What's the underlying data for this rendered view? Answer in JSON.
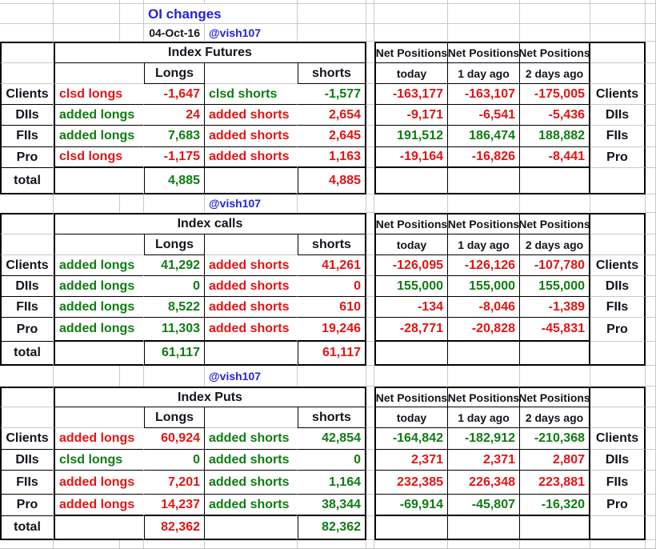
{
  "meta": {
    "title": "OI changes",
    "date": "04-Oct-16",
    "handle": "@vish107"
  },
  "colors": {
    "red": "#e41414",
    "green": "#0f7c12",
    "blue": "#2323dd",
    "gridline": "#c9c9c9"
  },
  "net": {
    "header": "Net Positions",
    "today": "today",
    "day1": "1 day ago",
    "day2": "2 days ago"
  },
  "cols": {
    "longs": "Longs",
    "shorts": "shorts"
  },
  "sections": [
    {
      "title": "Index Futures",
      "rows": [
        {
          "n": "Clients",
          "la": "clsd longs",
          "lac": "red",
          "lv": "-1,647",
          "lvc": "red",
          "sa": "clsd shorts",
          "sac": "green",
          "sv": "-1,577",
          "svc": "green",
          "nt": "-163,177",
          "n1": "-163,107",
          "n2": "-175,005",
          "nc": "red"
        },
        {
          "n": "DIIs",
          "la": "added longs",
          "lac": "green",
          "lv": "24",
          "lvc": "red",
          "sa": "added shorts",
          "sac": "red",
          "sv": "2,654",
          "svc": "red",
          "nt": "-9,171",
          "n1": "-6,541",
          "n2": "-5,436",
          "nc": "red"
        },
        {
          "n": "FIIs",
          "la": "added longs",
          "lac": "green",
          "lv": "7,683",
          "lvc": "green",
          "sa": "added shorts",
          "sac": "red",
          "sv": "2,645",
          "svc": "red",
          "nt": "191,512",
          "n1": "186,474",
          "n2": "188,882",
          "nc": "green"
        },
        {
          "n": "Pro",
          "la": "clsd longs",
          "lac": "red",
          "lv": "-1,175",
          "lvc": "red",
          "sa": "added shorts",
          "sac": "red",
          "sv": "1,163",
          "svc": "red",
          "nt": "-19,164",
          "n1": "-16,826",
          "n2": "-8,441",
          "nc": "red"
        }
      ],
      "total": {
        "label": "total",
        "lv": "4,885",
        "lvc": "green",
        "sv": "4,885",
        "svc": "red"
      },
      "footer": "@vish107"
    },
    {
      "title": "Index calls",
      "rows": [
        {
          "n": "Clients",
          "la": "added longs",
          "lac": "green",
          "lv": "41,292",
          "lvc": "green",
          "sa": "added shorts",
          "sac": "red",
          "sv": "41,261",
          "svc": "red",
          "nt": "-126,095",
          "n1": "-126,126",
          "n2": "-107,780",
          "nc": "red"
        },
        {
          "n": "DIIs",
          "la": "added longs",
          "lac": "green",
          "lv": "0",
          "lvc": "green",
          "sa": "added shorts",
          "sac": "red",
          "sv": "0",
          "svc": "red",
          "nt": "155,000",
          "n1": "155,000",
          "n2": "155,000",
          "nc": "green"
        },
        {
          "n": "FIIs",
          "la": "added longs",
          "lac": "green",
          "lv": "8,522",
          "lvc": "green",
          "sa": "added shorts",
          "sac": "red",
          "sv": "610",
          "svc": "red",
          "nt": "-134",
          "n1": "-8,046",
          "n2": "-1,389",
          "nc": "red"
        },
        {
          "n": "Pro",
          "la": "added longs",
          "lac": "green",
          "lv": "11,303",
          "lvc": "green",
          "sa": "added shorts",
          "sac": "red",
          "sv": "19,246",
          "svc": "red",
          "nt": "-28,771",
          "n1": "-20,828",
          "n2": "-45,831",
          "nc": "red"
        }
      ],
      "total": {
        "label": "total",
        "lv": "61,117",
        "lvc": "green",
        "sv": "61,117",
        "svc": "red"
      },
      "footer": "@vish107"
    },
    {
      "title": "Index Puts",
      "rows": [
        {
          "n": "Clients",
          "la": "added longs",
          "lac": "red",
          "lv": "60,924",
          "lvc": "red",
          "sa": "added shorts",
          "sac": "green",
          "sv": "42,854",
          "svc": "green",
          "nt": "-164,842",
          "n1": "-182,912",
          "n2": "-210,368",
          "nc": "green"
        },
        {
          "n": "DIIs",
          "la": "clsd longs",
          "lac": "green",
          "lv": "0",
          "lvc": "green",
          "sa": "added shorts",
          "sac": "green",
          "sv": "0",
          "svc": "green",
          "nt": "2,371",
          "n1": "2,371",
          "n2": "2,807",
          "nc": "red"
        },
        {
          "n": "FIIs",
          "la": "added longs",
          "lac": "red",
          "lv": "7,201",
          "lvc": "red",
          "sa": "added shorts",
          "sac": "green",
          "sv": "1,164",
          "svc": "green",
          "nt": "232,385",
          "n1": "226,348",
          "n2": "223,881",
          "nc": "red"
        },
        {
          "n": "Pro",
          "la": "added longs",
          "lac": "red",
          "lv": "14,237",
          "lvc": "red",
          "sa": "added shorts",
          "sac": "green",
          "sv": "38,344",
          "svc": "green",
          "nt": "-69,914",
          "n1": "-45,807",
          "n2": "-16,320",
          "nc": "green"
        }
      ],
      "total": {
        "label": "total",
        "lv": "82,362",
        "lvc": "red",
        "sv": "82,362",
        "svc": "green"
      }
    }
  ]
}
